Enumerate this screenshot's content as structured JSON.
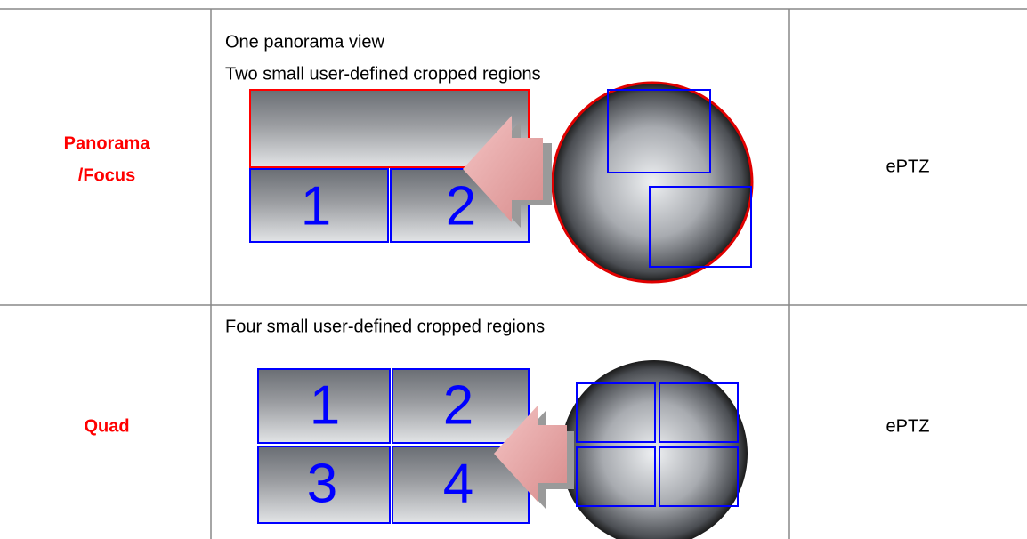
{
  "table": {
    "rows": [
      {
        "mode": [
          "Panorama",
          "/Focus"
        ],
        "description": [
          "One panorama view",
          "Two small user-defined cropped regions"
        ],
        "region_labels": [
          "1",
          "2"
        ],
        "function": "ePTZ"
      },
      {
        "mode": [
          "Quad"
        ],
        "description": [
          "Four small user-defined cropped regions"
        ],
        "region_labels": [
          "1",
          "2",
          "3",
          "4"
        ],
        "function": "ePTZ"
      }
    ]
  }
}
